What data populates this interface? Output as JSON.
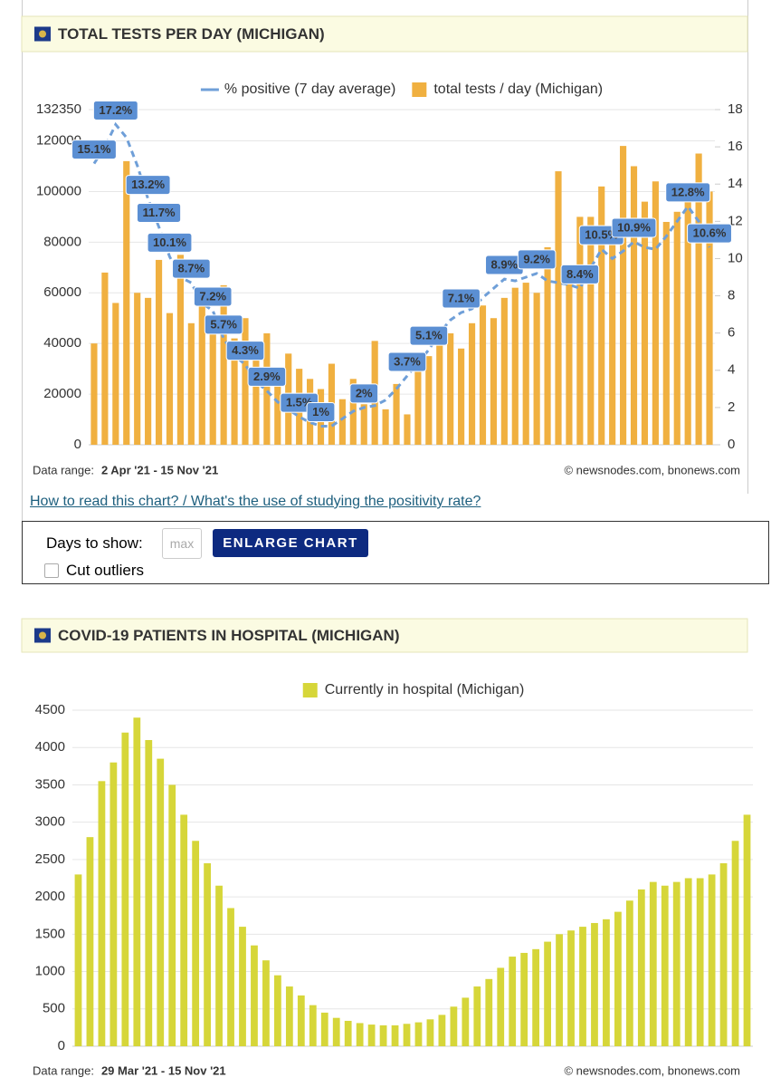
{
  "chart_data": [
    {
      "type": "bar",
      "title": "TOTAL TESTS PER DAY (MICHIGAN)",
      "series": [
        {
          "name": "% positive (7 day average)",
          "type": "line",
          "axis": "y2",
          "color": "#6f9fd8",
          "values": [
            15.1,
            16.0,
            17.2,
            16.5,
            15.0,
            13.2,
            11.7,
            10.1,
            9.0,
            8.7,
            7.6,
            7.2,
            5.7,
            4.8,
            4.3,
            3.4,
            2.9,
            2.3,
            1.9,
            1.5,
            1.2,
            1.0,
            1.0,
            1.4,
            1.8,
            2.0,
            2.1,
            2.4,
            3.0,
            3.7,
            4.4,
            5.1,
            6.0,
            6.7,
            7.1,
            7.3,
            7.9,
            8.4,
            8.9,
            8.8,
            9.0,
            9.2,
            8.8,
            8.7,
            8.6,
            8.4,
            9.5,
            10.5,
            10.0,
            10.4,
            10.9,
            10.6,
            10.5,
            11.2,
            12.0,
            12.8,
            12.0,
            10.6
          ],
          "value_labels": [
            "15.1%",
            null,
            "17.2%",
            null,
            null,
            "13.2%",
            "11.7%",
            "10.1%",
            null,
            "8.7%",
            null,
            "7.2%",
            "5.7%",
            null,
            "4.3%",
            null,
            "2.9%",
            null,
            null,
            "1.5%",
            null,
            "1%",
            null,
            null,
            null,
            "2%",
            null,
            null,
            null,
            "3.7%",
            null,
            "5.1%",
            null,
            null,
            "7.1%",
            null,
            null,
            null,
            "8.9%",
            null,
            null,
            "9.2%",
            null,
            null,
            null,
            "8.4%",
            null,
            "10.5%",
            null,
            null,
            "10.9%",
            null,
            null,
            null,
            null,
            "12.8%",
            null,
            "10.6%"
          ]
        },
        {
          "name": "total tests / day (Michigan)",
          "type": "bar",
          "color": "#f0b040",
          "values": [
            40000,
            68000,
            56000,
            112000,
            60000,
            58000,
            73000,
            52000,
            75000,
            48000,
            55000,
            46000,
            63000,
            42000,
            50000,
            38000,
            44000,
            28000,
            36000,
            30000,
            26000,
            22000,
            32000,
            18000,
            26000,
            16000,
            41000,
            14000,
            24000,
            12000,
            36000,
            35000,
            40000,
            44000,
            38000,
            48000,
            55000,
            50000,
            58000,
            62000,
            64000,
            60000,
            78000,
            108000,
            70000,
            90000,
            90000,
            102000,
            82000,
            118000,
            110000,
            96000,
            104000,
            88000,
            92000,
            96000,
            115000,
            100000
          ]
        }
      ],
      "ylim": [
        0,
        132350
      ],
      "yticks": [
        0,
        20000,
        40000,
        60000,
        80000,
        100000,
        120000,
        132350
      ],
      "y2lim": [
        0,
        18
      ],
      "y2ticks": [
        0,
        2,
        4,
        6,
        8,
        10,
        12,
        14,
        16,
        18
      ],
      "grid": true,
      "data_range_label": "Data range:",
      "data_range": "2 Apr '21  -  15 Nov '21",
      "source": "© newsnodes.com, bnonews.com"
    },
    {
      "type": "bar",
      "title": "COVID-19 PATIENTS IN HOSPITAL (MICHIGAN)",
      "series": [
        {
          "name": "Currently in hospital (Michigan)",
          "type": "bar",
          "color": "#d6d639",
          "values": [
            2300,
            2800,
            3550,
            3800,
            4200,
            4400,
            4100,
            3850,
            3500,
            3100,
            2750,
            2450,
            2150,
            1850,
            1600,
            1350,
            1150,
            950,
            800,
            680,
            550,
            450,
            380,
            340,
            310,
            290,
            280,
            280,
            300,
            320,
            360,
            420,
            530,
            650,
            800,
            900,
            1050,
            1200,
            1250,
            1300,
            1400,
            1500,
            1550,
            1600,
            1650,
            1700,
            1800,
            1950,
            2100,
            2200,
            2150,
            2200,
            2250,
            2250,
            2300,
            2450,
            2750,
            3100
          ]
        }
      ],
      "ylim": [
        0,
        4500
      ],
      "yticks": [
        0,
        500,
        1000,
        1500,
        2000,
        2500,
        3000,
        3500,
        4000,
        4500
      ],
      "grid": true,
      "data_range_label": "Data range:",
      "data_range": "29 Mar '21  -  15 Nov '21",
      "source": "© newsnodes.com, bnonews.com"
    }
  ],
  "controls": {
    "help_link": "How to read this chart? / What's the use of studying the positivity rate?",
    "days_label": "Days to show:",
    "days_placeholder": "max",
    "enlarge_button": "ENLARGE CHART",
    "outliers_label": "Cut outliers"
  }
}
